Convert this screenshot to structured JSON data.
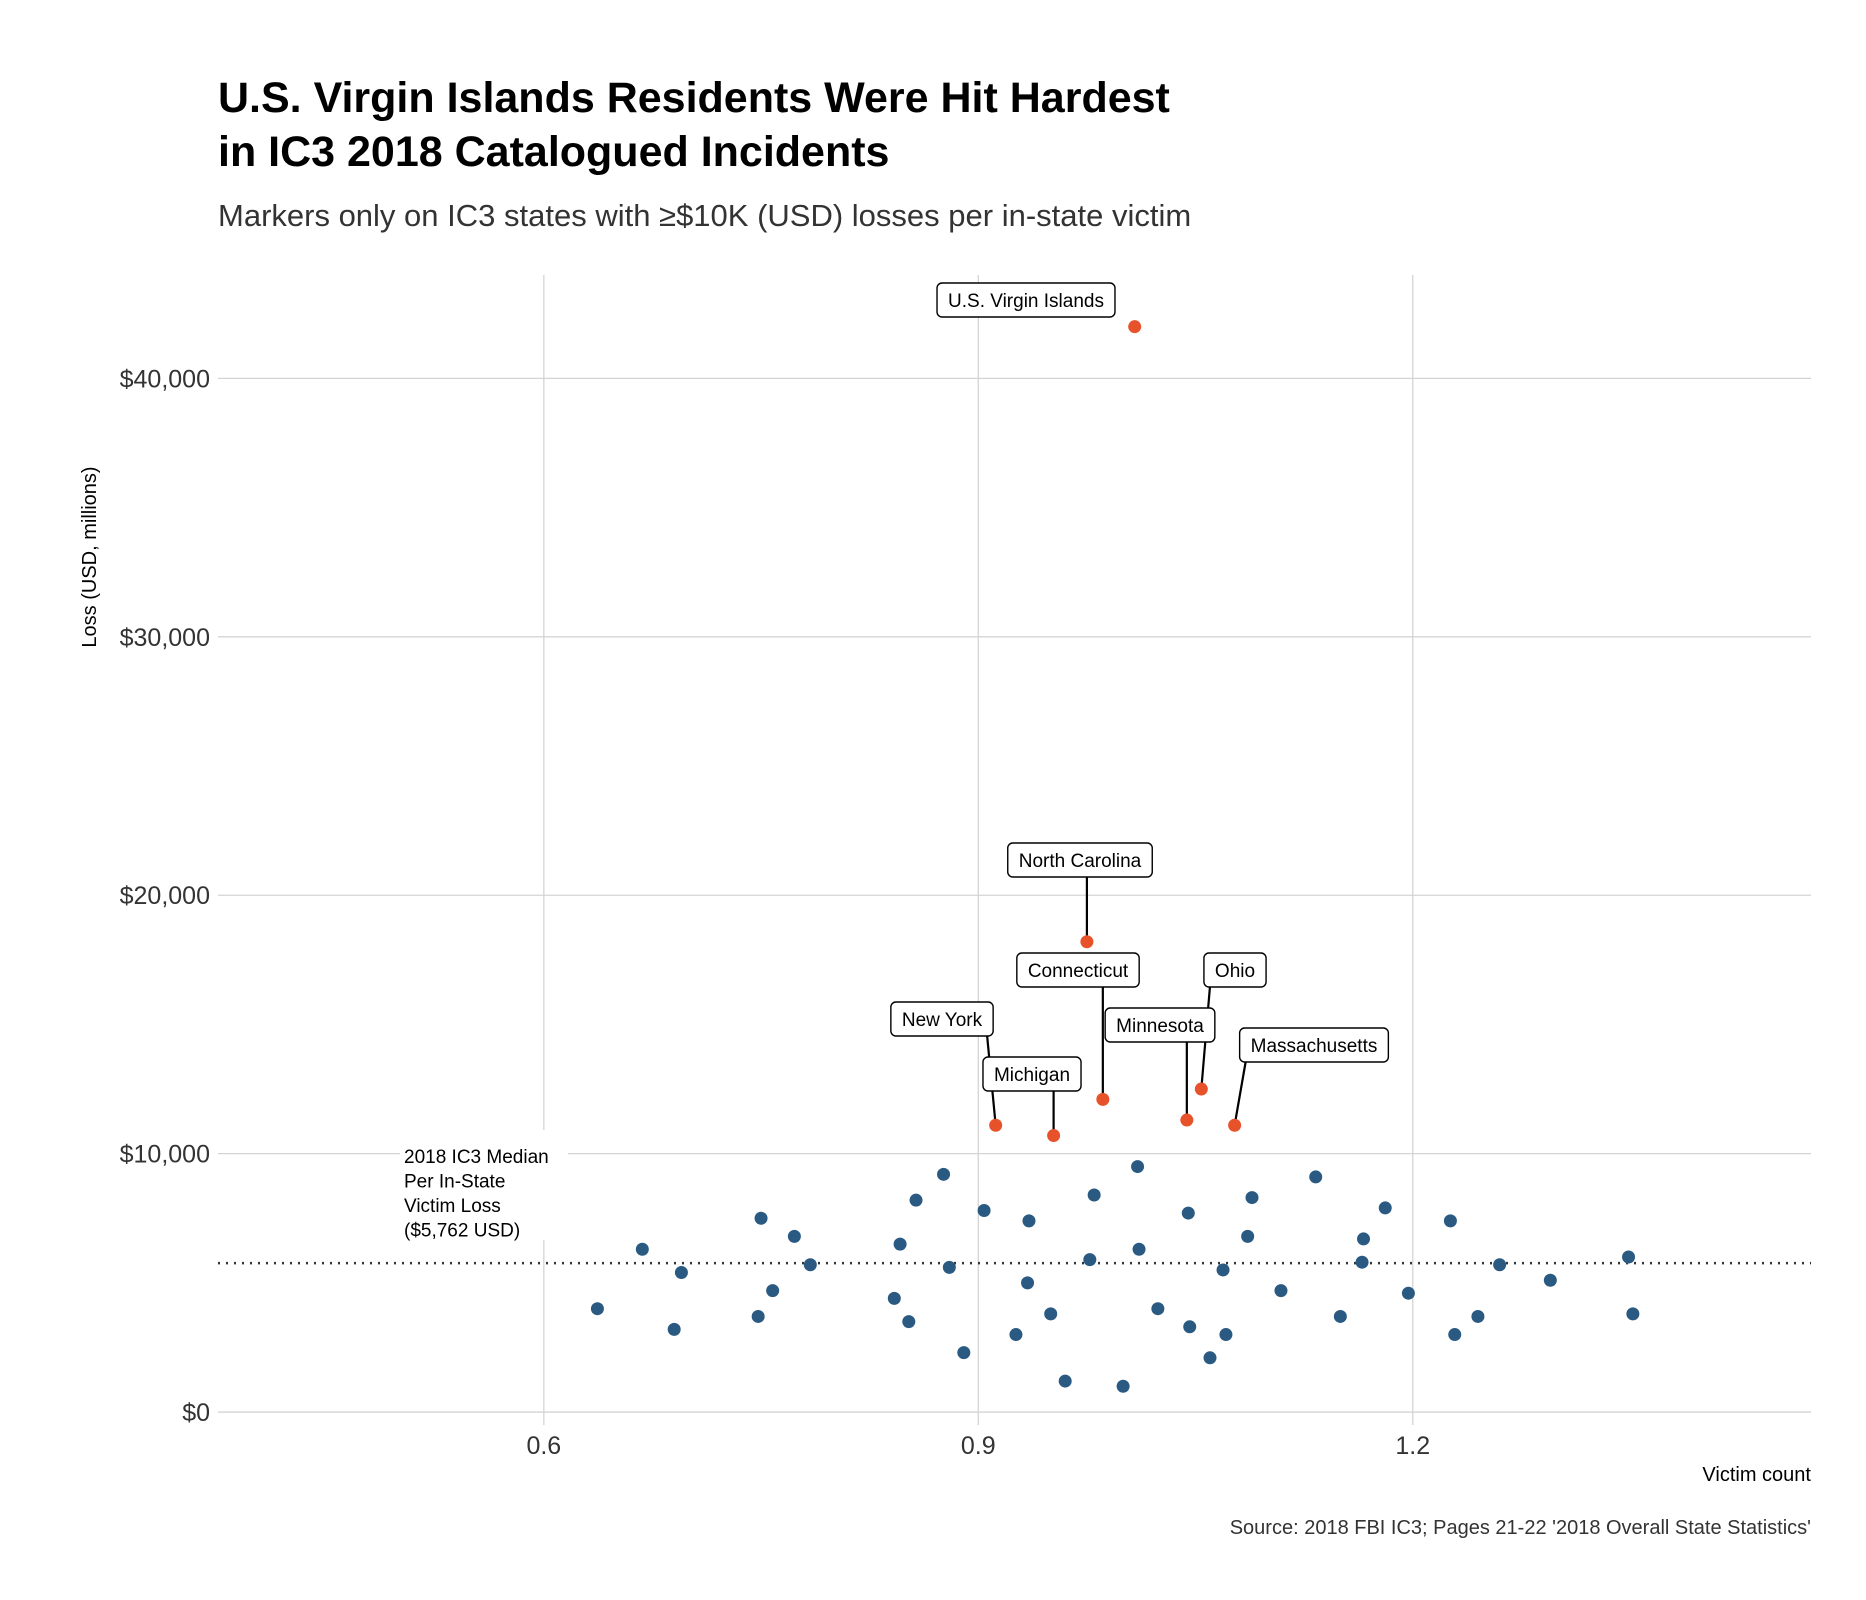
{
  "title_line1": "U.S. Virgin Islands Residents Were Hit Hardest",
  "title_line2": "in IC3 2018 Catalogued Incidents",
  "subtitle": "Markers only on IC3 states with ≥$10K (USD) losses per in-state victim",
  "caption": "Source: 2018 FBI IC3; Pages 21-22 '2018 Overall State Statistics'",
  "colors": {
    "highlight": "#e8522b",
    "regular": "#2a5a82",
    "grid": "#d4d4d4",
    "median": "#333333"
  },
  "median_label": [
    "2018 IC3 Median",
    "Per In-State",
    "Victim Loss",
    "($5,762 USD)"
  ],
  "chart_data": {
    "type": "scatter",
    "title": "U.S. Virgin Islands Residents Were Hit Hardest in IC3 2018 Catalogued Incidents",
    "xlabel": "Victim count",
    "ylabel": "Loss (USD, millions)",
    "xlim": [
      0.375,
      1.475
    ],
    "ylim": [
      -500,
      44000
    ],
    "x_ticks": [
      0.6,
      0.9,
      1.2
    ],
    "x_tick_labels": [
      "0.6",
      "0.9",
      "1.2"
    ],
    "y_ticks": [
      0,
      10000,
      20000,
      30000,
      40000
    ],
    "y_tick_labels": [
      "$0",
      "$10,000",
      "$20,000",
      "$30,000",
      "$40,000"
    ],
    "grid": true,
    "median_value": 5762,
    "highlighted": [
      {
        "label": "U.S. Virgin Islands",
        "x": 1.008,
        "y": 42000
      },
      {
        "label": "North Carolina",
        "x": 0.975,
        "y": 18200
      },
      {
        "label": "Connecticut",
        "x": 0.986,
        "y": 12100
      },
      {
        "label": "Ohio",
        "x": 1.054,
        "y": 12500
      },
      {
        "label": "Minnesota",
        "x": 1.044,
        "y": 11300
      },
      {
        "label": "Massachusetts",
        "x": 1.077,
        "y": 11100
      },
      {
        "label": "New York",
        "x": 0.912,
        "y": 11100
      },
      {
        "label": "Michigan",
        "x": 0.952,
        "y": 10700
      }
    ],
    "points": [
      {
        "x": 0.637,
        "y": 4000
      },
      {
        "x": 0.668,
        "y": 6300
      },
      {
        "x": 0.69,
        "y": 3200
      },
      {
        "x": 0.695,
        "y": 5400
      },
      {
        "x": 0.748,
        "y": 3700
      },
      {
        "x": 0.75,
        "y": 7500
      },
      {
        "x": 0.758,
        "y": 4700
      },
      {
        "x": 0.773,
        "y": 6800
      },
      {
        "x": 0.784,
        "y": 5700
      },
      {
        "x": 0.842,
        "y": 4400
      },
      {
        "x": 0.846,
        "y": 6500
      },
      {
        "x": 0.852,
        "y": 3500
      },
      {
        "x": 0.857,
        "y": 8200
      },
      {
        "x": 0.876,
        "y": 9200
      },
      {
        "x": 0.88,
        "y": 5600
      },
      {
        "x": 0.89,
        "y": 2300
      },
      {
        "x": 0.904,
        "y": 7800
      },
      {
        "x": 0.926,
        "y": 3000
      },
      {
        "x": 0.934,
        "y": 5000
      },
      {
        "x": 0.935,
        "y": 7400
      },
      {
        "x": 0.95,
        "y": 3800
      },
      {
        "x": 0.96,
        "y": 1200
      },
      {
        "x": 0.977,
        "y": 5900
      },
      {
        "x": 0.98,
        "y": 8400
      },
      {
        "x": 1.0,
        "y": 1000
      },
      {
        "x": 1.01,
        "y": 9500
      },
      {
        "x": 1.011,
        "y": 6300
      },
      {
        "x": 1.024,
        "y": 4000
      },
      {
        "x": 1.045,
        "y": 7700
      },
      {
        "x": 1.046,
        "y": 3300
      },
      {
        "x": 1.06,
        "y": 2100
      },
      {
        "x": 1.069,
        "y": 5500
      },
      {
        "x": 1.071,
        "y": 3000
      },
      {
        "x": 1.086,
        "y": 6800
      },
      {
        "x": 1.089,
        "y": 8300
      },
      {
        "x": 1.109,
        "y": 4700
      },
      {
        "x": 1.133,
        "y": 9100
      },
      {
        "x": 1.15,
        "y": 3700
      },
      {
        "x": 1.165,
        "y": 5800
      },
      {
        "x": 1.166,
        "y": 6700
      },
      {
        "x": 1.181,
        "y": 7900
      },
      {
        "x": 1.197,
        "y": 4600
      },
      {
        "x": 1.226,
        "y": 7400
      },
      {
        "x": 1.229,
        "y": 3000
      },
      {
        "x": 1.245,
        "y": 3700
      },
      {
        "x": 1.26,
        "y": 5700
      },
      {
        "x": 1.295,
        "y": 5100
      },
      {
        "x": 1.349,
        "y": 6000
      },
      {
        "x": 1.352,
        "y": 3800
      }
    ]
  }
}
